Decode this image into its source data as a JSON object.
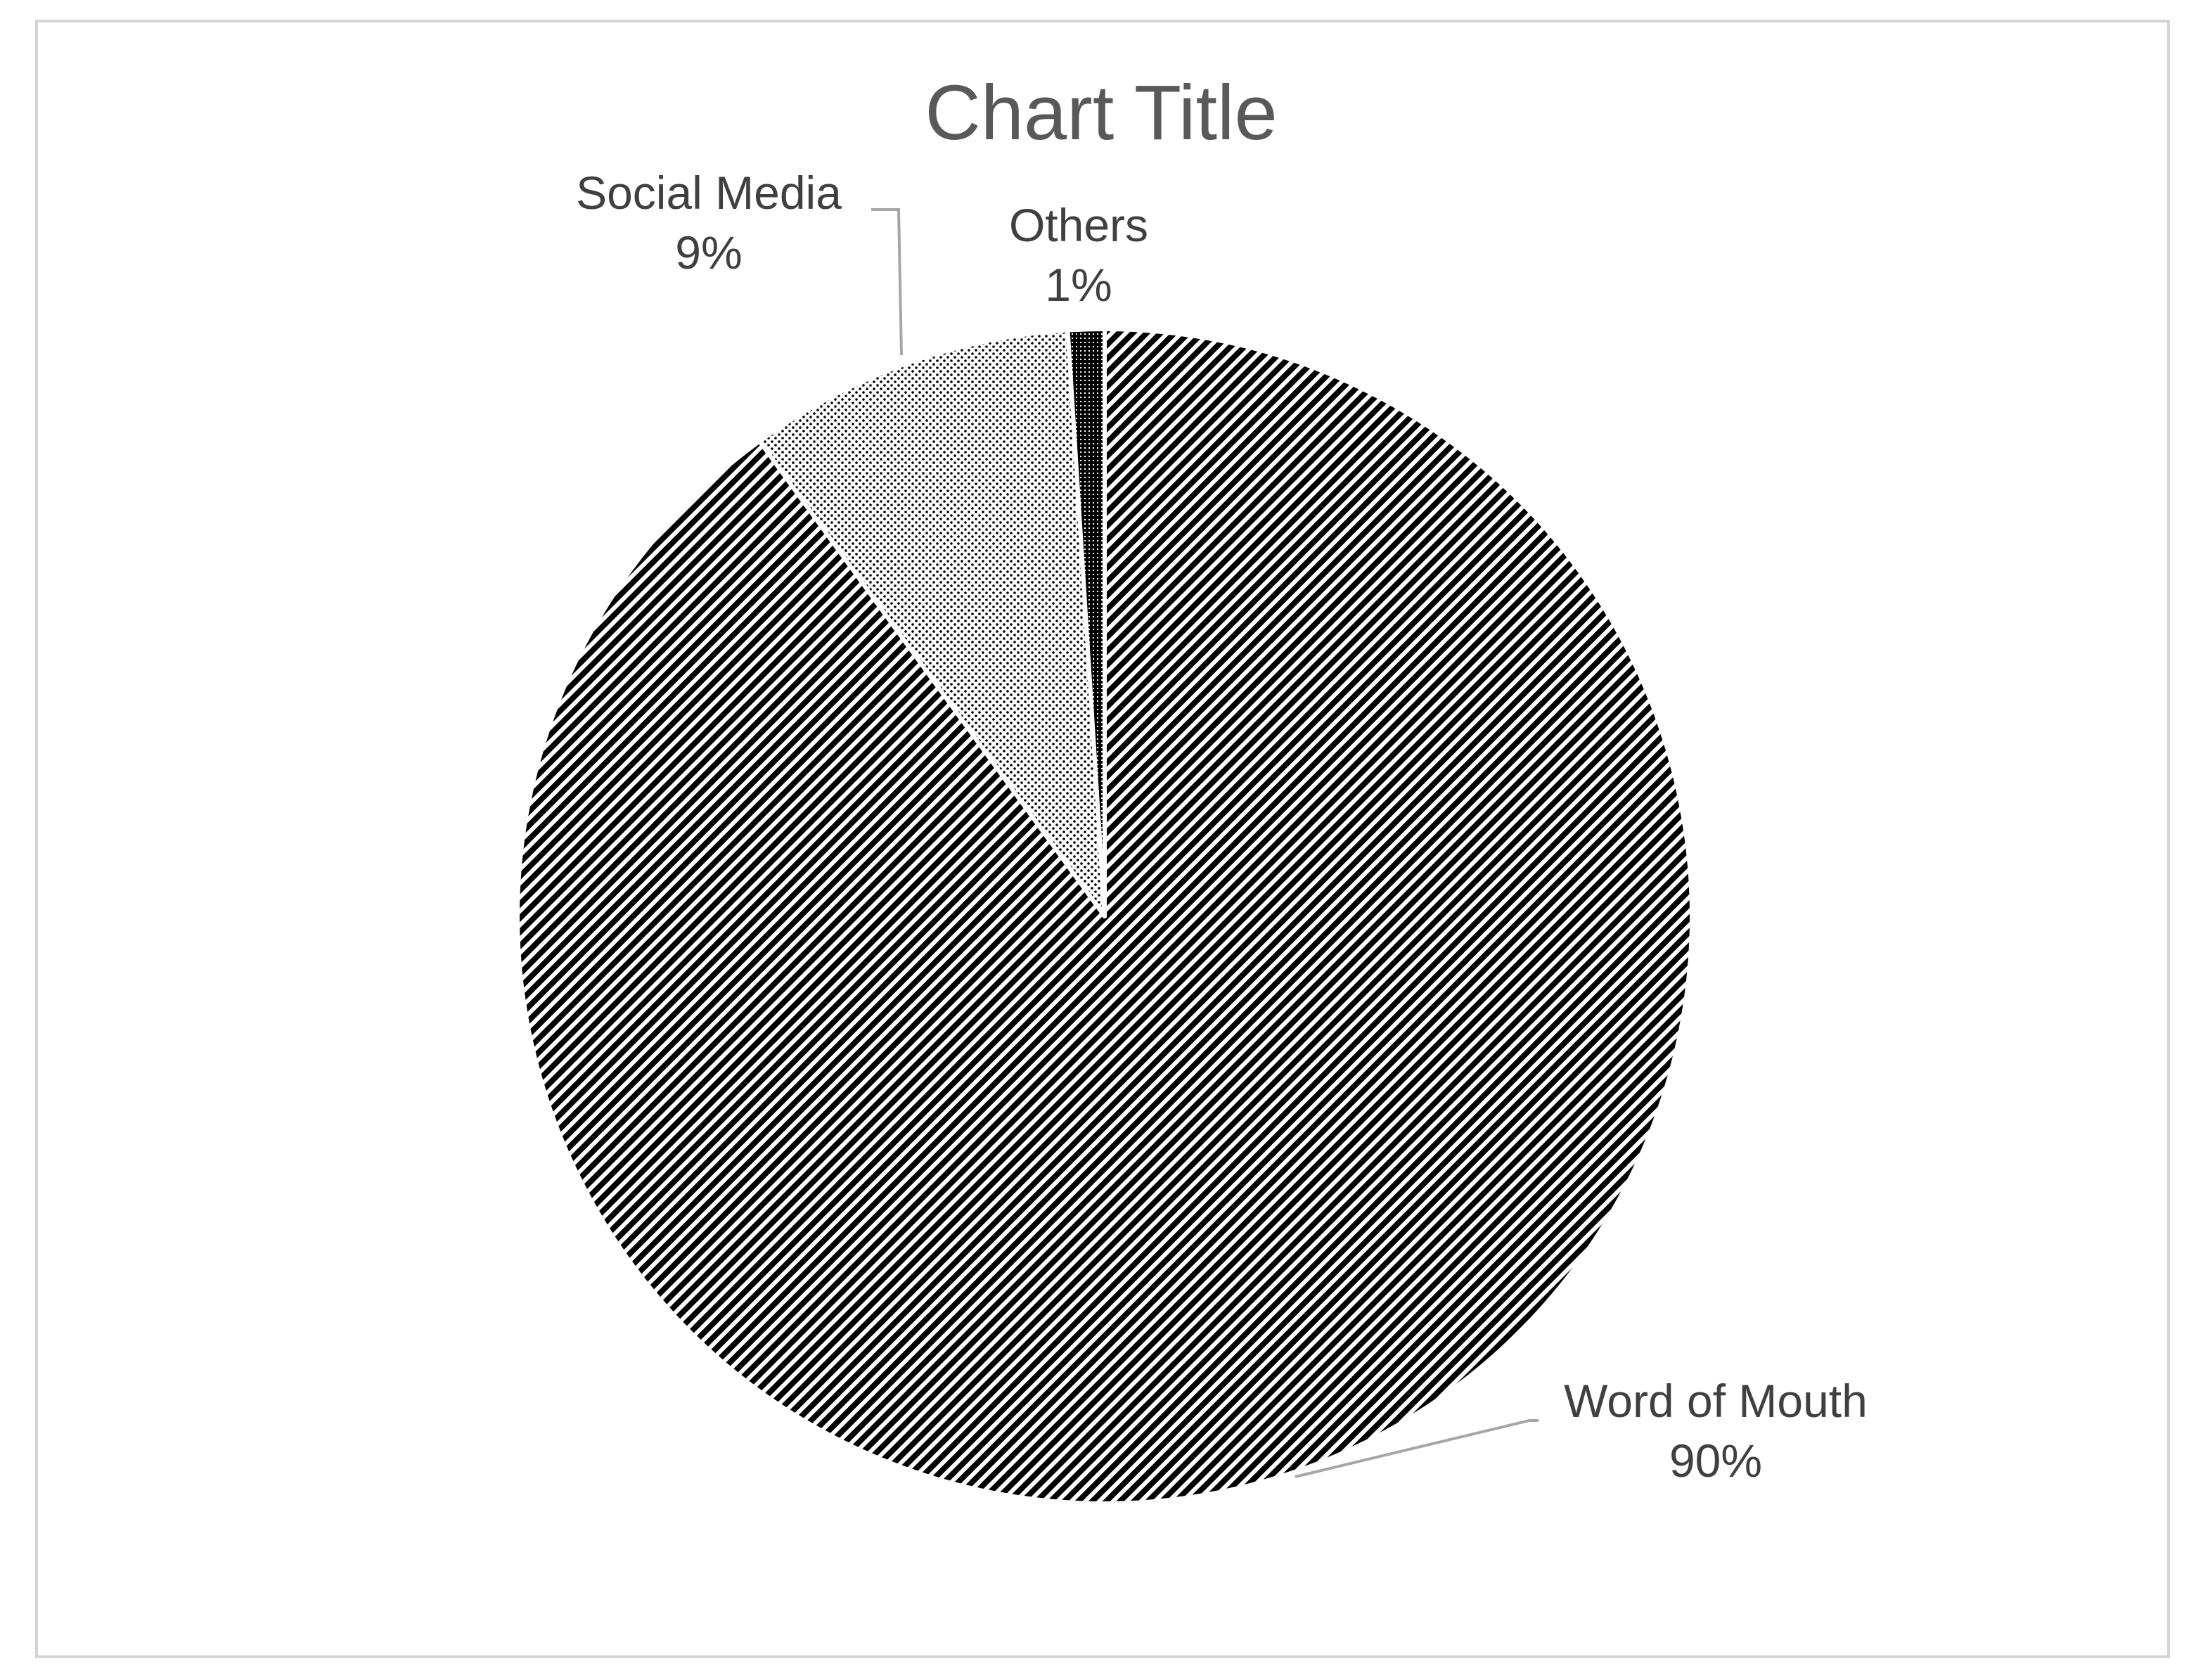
{
  "chart_data": {
    "type": "pie",
    "title": "Chart Title",
    "categories": [
      "Word of Mouth",
      "Social Media",
      "Others"
    ],
    "values": [
      90,
      9,
      1
    ],
    "labels": [
      "90%",
      "9%",
      "1%"
    ],
    "start_angle_deg": 0,
    "direction": "counterclockwise-from-top",
    "legend": "none",
    "colors": {
      "pattern_ink": "#000000",
      "background": "#ffffff",
      "slice_border": "#ffffff",
      "leader_line": "#a6a6a6",
      "title": "#595959",
      "labels": "#404040",
      "frame": "#d4d4d4"
    }
  }
}
